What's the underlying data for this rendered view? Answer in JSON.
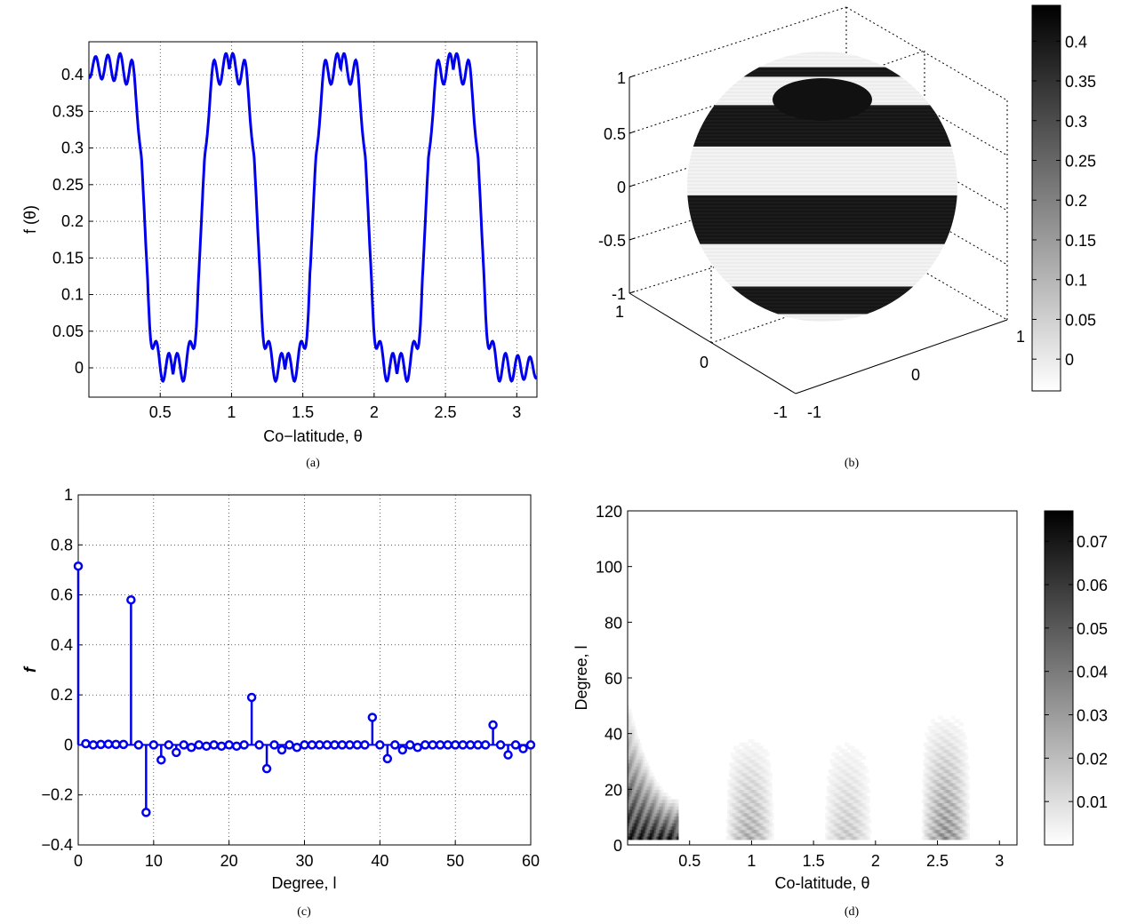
{
  "captions": {
    "a": "(a)",
    "b": "(b)",
    "c": "(c)",
    "d": "(d)"
  },
  "chart_data": [
    {
      "id": "a",
      "type": "line",
      "xlabel": "Co−latitude, θ",
      "ylabel": "f (θ)",
      "xlim": [
        0,
        3.14159
      ],
      "ylim": [
        -0.04,
        0.445
      ],
      "xticks": [
        0.5,
        1,
        1.5,
        2,
        2.5,
        3
      ],
      "xtick_labels": [
        "0.5",
        "1",
        "1.5",
        "2",
        "2.5",
        "3"
      ],
      "yticks": [
        0,
        0.05,
        0.1,
        0.15,
        0.2,
        0.25,
        0.3,
        0.35,
        0.4
      ],
      "ytick_labels": [
        "0",
        "0.05",
        "0.1",
        "0.15",
        "0.2",
        "0.25",
        "0.3",
        "0.35",
        "0.4"
      ],
      "grid": true,
      "color": "#0000ee",
      "band_edges": [
        0.39,
        0.79,
        1.18,
        1.57,
        1.96,
        2.36,
        2.75
      ],
      "high_level": 0.41,
      "low_level": 0.0,
      "sharpness": 40,
      "ripple_amplitude": 0.025,
      "ripple_frequency": 28
    },
    {
      "id": "b",
      "type": "sphere",
      "zticks": [
        -1,
        -0.5,
        0,
        0.5,
        1
      ],
      "ztick_labels": [
        "-1",
        "-0.5",
        "0",
        "0.5",
        "1"
      ],
      "xticks_labels": [
        "1",
        "0",
        "-1"
      ],
      "yticks_labels": [
        "-1",
        "0",
        "1"
      ],
      "colorbar_ticks": [
        0,
        0.05,
        0.1,
        0.15,
        0.2,
        0.25,
        0.3,
        0.35,
        0.4
      ],
      "colorbar_tick_labels": [
        "0",
        "0.05",
        "0.1",
        "0.15",
        "0.2",
        "0.25",
        "0.3",
        "0.35",
        "0.4"
      ],
      "colorbar_range": [
        -0.04,
        0.445
      ],
      "colormap": "white-to-black"
    },
    {
      "id": "c",
      "type": "stem",
      "xlabel": "Degree, l",
      "ylabel": "f",
      "xlim": [
        0,
        60
      ],
      "ylim": [
        -0.4,
        1
      ],
      "xticks": [
        0,
        10,
        20,
        30,
        40,
        50,
        60
      ],
      "xtick_labels": [
        "0",
        "10",
        "20",
        "30",
        "40",
        "50",
        "60"
      ],
      "yticks": [
        -0.4,
        -0.2,
        0,
        0.2,
        0.4,
        0.6,
        0.8,
        1
      ],
      "ytick_labels": [
        "−0.4",
        "−0.2",
        "0",
        "0.2",
        "0.4",
        "0.6",
        "0.8",
        "1"
      ],
      "grid": true,
      "color": "#0000ee",
      "x": [
        0,
        1,
        2,
        3,
        4,
        5,
        6,
        7,
        8,
        9,
        10,
        11,
        12,
        13,
        14,
        15,
        16,
        17,
        18,
        19,
        20,
        21,
        22,
        23,
        24,
        25,
        26,
        27,
        28,
        29,
        30,
        31,
        32,
        33,
        34,
        35,
        36,
        37,
        38,
        39,
        40,
        41,
        42,
        43,
        44,
        45,
        46,
        47,
        48,
        49,
        50,
        51,
        52,
        53,
        54,
        55,
        56,
        57,
        58,
        59,
        60
      ],
      "values": [
        0.715,
        0.005,
        0,
        0.002,
        0.003,
        0.002,
        0.002,
        0.58,
        0,
        -0.27,
        0,
        -0.06,
        0,
        -0.03,
        0,
        -0.01,
        0,
        -0.005,
        0,
        -0.005,
        0,
        -0.005,
        0,
        0.19,
        0,
        -0.095,
        0,
        -0.02,
        0,
        -0.01,
        0,
        0,
        0,
        0,
        0,
        0,
        0,
        0,
        0,
        0.11,
        0,
        -0.055,
        0,
        -0.02,
        0,
        -0.01,
        0,
        0,
        0,
        0,
        0,
        0,
        0,
        0,
        0,
        0.08,
        0,
        -0.04,
        0,
        -0.015,
        0
      ]
    },
    {
      "id": "d",
      "type": "heatmap",
      "xlabel": "Co-latitude, θ",
      "ylabel": "Degree, l",
      "xlim": [
        0,
        3.14159
      ],
      "ylim": [
        0,
        120
      ],
      "xticks": [
        0.5,
        1,
        1.5,
        2,
        2.5,
        3
      ],
      "xtick_labels": [
        "0.5",
        "1",
        "1.5",
        "2",
        "2.5",
        "3"
      ],
      "yticks": [
        0,
        20,
        40,
        60,
        80,
        100,
        120
      ],
      "ytick_labels": [
        "0",
        "20",
        "40",
        "60",
        "80",
        "100",
        "120"
      ],
      "colorbar_ticks": [
        0.01,
        0.02,
        0.03,
        0.04,
        0.05,
        0.06,
        0.07
      ],
      "colorbar_tick_labels": [
        "0.01",
        "0.02",
        "0.03",
        "0.04",
        "0.05",
        "0.06",
        "0.07"
      ],
      "colorbar_range": [
        0,
        0.077
      ],
      "colormap": "white-to-black",
      "patches": [
        {
          "theta": [
            0.0,
            0.4
          ],
          "degree": [
            2,
            50
          ],
          "peak": 0.075
        },
        {
          "theta": [
            0.78,
            1.18
          ],
          "degree": [
            2,
            40
          ],
          "peak": 0.03
        },
        {
          "theta": [
            1.57,
            1.97
          ],
          "degree": [
            2,
            40
          ],
          "peak": 0.02
        },
        {
          "theta": [
            2.36,
            2.76
          ],
          "degree": [
            2,
            48
          ],
          "peak": 0.04
        }
      ]
    }
  ]
}
